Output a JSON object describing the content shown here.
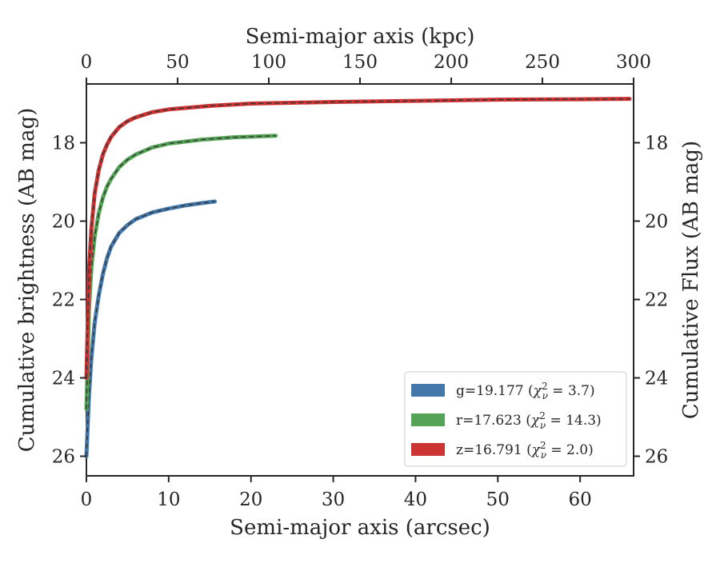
{
  "chart_data": {
    "type": "line",
    "xlabel": "Semi-major axis (arcsec)",
    "x2label": "Semi-major axis (kpc)",
    "ylabel": "Cumulative brightness (AB mag)",
    "y2label": "Cumulative Flux (AB mag)",
    "xlim": [
      0,
      66.5
    ],
    "ylim": [
      26.5,
      16.5
    ],
    "y_inverted": true,
    "x2lim": [
      0,
      300
    ],
    "xticks": [
      "0",
      "10",
      "20",
      "30",
      "40",
      "50",
      "60"
    ],
    "x2ticks": [
      "0",
      "50",
      "100",
      "150",
      "200",
      "250",
      "300"
    ],
    "yticks": [
      "18",
      "20",
      "22",
      "24",
      "26"
    ],
    "legend_position": "lower-right",
    "grid": false,
    "series": [
      {
        "name": "g",
        "legend": "g=19.177 (χ²_ν = 3.7)",
        "legend_main": "g=19.177 (",
        "legend_chi": "χ",
        "legend_sup": "2",
        "legend_sub": "ν",
        "legend_end": " = 3.7)",
        "color": "#4477aa",
        "points": [
          [
            0.0,
            26.0
          ],
          [
            0.3,
            24.5
          ],
          [
            0.6,
            23.5
          ],
          [
            1.0,
            22.6
          ],
          [
            1.5,
            21.9
          ],
          [
            2.0,
            21.35
          ],
          [
            2.5,
            20.95
          ],
          [
            3.0,
            20.65
          ],
          [
            4.0,
            20.3
          ],
          [
            5.0,
            20.1
          ],
          [
            6.0,
            19.95
          ],
          [
            8.0,
            19.78
          ],
          [
            10.0,
            19.68
          ],
          [
            12.0,
            19.6
          ],
          [
            14.0,
            19.54
          ],
          [
            15.6,
            19.5
          ]
        ]
      },
      {
        "name": "r",
        "legend": "r=17.623 (χ²_ν = 14.3)",
        "legend_main": "r=17.623 (",
        "legend_chi": "χ",
        "legend_sup": "2",
        "legend_sub": "ν",
        "legend_end": " = 14.3)",
        "color": "#55a356",
        "points": [
          [
            0.0,
            24.8
          ],
          [
            0.3,
            22.3
          ],
          [
            0.6,
            21.2
          ],
          [
            1.0,
            20.4
          ],
          [
            1.5,
            19.8
          ],
          [
            2.0,
            19.4
          ],
          [
            2.5,
            19.12
          ],
          [
            3.0,
            18.92
          ],
          [
            4.0,
            18.62
          ],
          [
            5.0,
            18.43
          ],
          [
            6.0,
            18.3
          ],
          [
            8.0,
            18.12
          ],
          [
            10.0,
            18.02
          ],
          [
            14.0,
            17.92
          ],
          [
            18.0,
            17.86
          ],
          [
            23.0,
            17.82
          ]
        ]
      },
      {
        "name": "z",
        "legend": "z=16.791 (χ²_ν = 2.0)",
        "legend_main": "z=16.791 (",
        "legend_chi": "χ",
        "legend_sup": "2",
        "legend_sub": "ν",
        "legend_end": " = 2.0)",
        "color": "#cc3333",
        "points": [
          [
            0.0,
            24.0
          ],
          [
            0.3,
            21.3
          ],
          [
            0.6,
            20.2
          ],
          [
            1.0,
            19.3
          ],
          [
            1.5,
            18.7
          ],
          [
            2.0,
            18.3
          ],
          [
            2.5,
            18.05
          ],
          [
            3.0,
            17.85
          ],
          [
            4.0,
            17.6
          ],
          [
            5.0,
            17.45
          ],
          [
            6.0,
            17.35
          ],
          [
            8.0,
            17.22
          ],
          [
            10.0,
            17.15
          ],
          [
            15.0,
            17.06
          ],
          [
            20.0,
            17.0
          ],
          [
            30.0,
            16.96
          ],
          [
            40.0,
            16.93
          ],
          [
            50.0,
            16.9
          ],
          [
            60.0,
            16.89
          ],
          [
            66.0,
            16.88
          ]
        ]
      }
    ]
  }
}
